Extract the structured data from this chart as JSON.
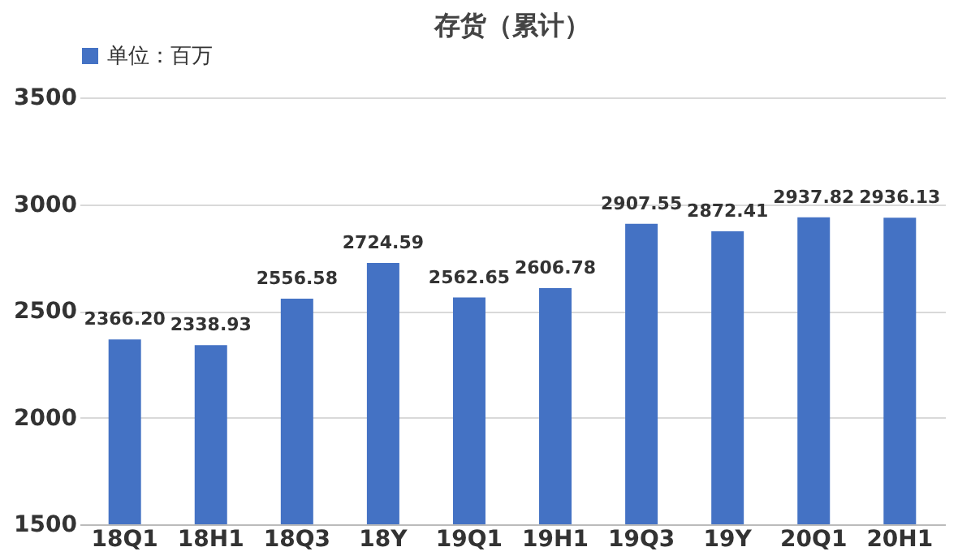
{
  "chart_data": {
    "type": "bar",
    "title": "存货（累计）",
    "categories": [
      "18Q1",
      "18H1",
      "18Q3",
      "18Y",
      "19Q1",
      "19H1",
      "19Q3",
      "19Y",
      "20Q1",
      "20H1"
    ],
    "series": [
      {
        "name": "单位：百万",
        "color": "#4472c4",
        "values": [
          2366.2,
          2338.93,
          2556.58,
          2724.59,
          2562.65,
          2606.78,
          2907.55,
          2872.41,
          2937.82,
          2936.13
        ]
      }
    ],
    "value_labels": [
      "2366.20",
      "2338.93",
      "2556.58",
      "2724.59",
      "2562.65",
      "2606.78",
      "2907.55",
      "2872.41",
      "2937.82",
      "2936.13"
    ],
    "ylim": [
      1500,
      3500
    ],
    "yticks": [
      1500,
      2000,
      2500,
      3000,
      3500
    ],
    "grid": "y",
    "legend": "top"
  }
}
